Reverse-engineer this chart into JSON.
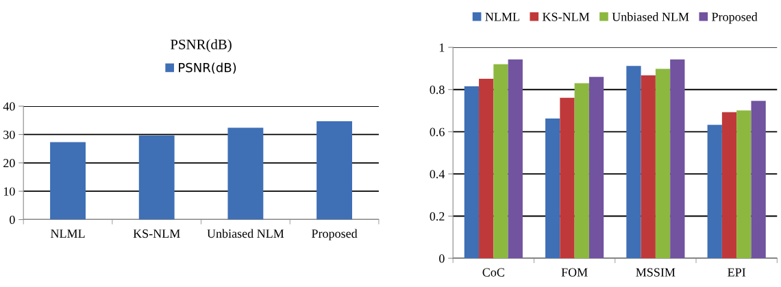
{
  "chart_data": [
    {
      "type": "bar",
      "title": "PSNR(dB)",
      "categories": [
        "NLML",
        "KS-NLM",
        "Unbiased NLM",
        "Proposed"
      ],
      "series": [
        {
          "name": "PSNR(dB)",
          "color": "#3f6fb5",
          "values": [
            27.3,
            29.7,
            32.4,
            34.7
          ]
        }
      ],
      "ylim": [
        0,
        40
      ],
      "yticks": [
        0,
        10,
        20,
        30,
        40
      ],
      "grid": "y",
      "legend": "top"
    },
    {
      "type": "bar",
      "categories": [
        "CoC",
        "FOM",
        "MSSIM",
        "EPI"
      ],
      "series": [
        {
          "name": "NLML",
          "color": "#3f6fb5",
          "values": [
            0.815,
            0.663,
            0.912,
            0.633
          ]
        },
        {
          "name": "KS-NLM",
          "color": "#c0393a",
          "values": [
            0.851,
            0.761,
            0.867,
            0.693
          ]
        },
        {
          "name": "Unbiased NLM",
          "color": "#8cb840",
          "values": [
            0.92,
            0.83,
            0.898,
            0.701
          ]
        },
        {
          "name": "Proposed",
          "color": "#7153a0",
          "values": [
            0.943,
            0.86,
            0.943,
            0.746
          ]
        }
      ],
      "ylim": [
        0,
        1
      ],
      "yticks": [
        0,
        0.2,
        0.4,
        0.6,
        0.8,
        1
      ],
      "grid": "y",
      "legend": "top"
    }
  ]
}
